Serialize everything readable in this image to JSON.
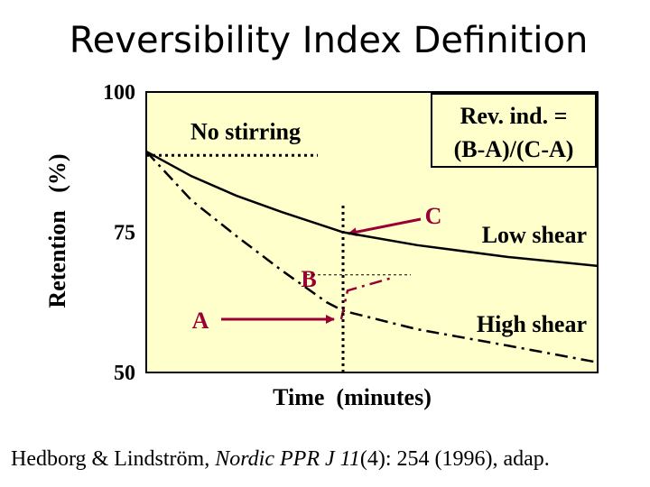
{
  "chart_data": {
    "type": "line",
    "title": "Reversibility Index Definition",
    "ylabel": "Retention   (%)",
    "xlabel": "Time  (minutes)",
    "ylim": [
      50,
      100
    ],
    "yticks": [
      50,
      75,
      100
    ],
    "xlim": [
      0,
      100
    ],
    "series": [
      {
        "name": "Low shear",
        "color": "#000000",
        "style": "solid",
        "x": [
          0,
          10,
          20,
          30,
          43.6,
          60,
          80,
          100
        ],
        "values": [
          89.4,
          85,
          81.5,
          78.6,
          75,
          72.7,
          70.6,
          69
        ]
      },
      {
        "name": "High shear",
        "color": "#000000",
        "style": "dashdot",
        "x": [
          0,
          10,
          20,
          30,
          40,
          43.6,
          60,
          80,
          100
        ],
        "values": [
          89.4,
          80.7,
          74.3,
          68.2,
          62.5,
          61,
          57.7,
          54.8,
          51.8
        ]
      },
      {
        "color": "#990033",
        "style": "dashdot",
        "x": [
          43.2,
          44.6,
          55
        ],
        "values": [
          59.5,
          64.6,
          67
        ]
      },
      {
        "name": "No stirring",
        "color": "#000000",
        "style": "dotted",
        "x": [
          0,
          38
        ],
        "values": [
          88.7,
          88.7
        ]
      }
    ],
    "vline_x": 43.6,
    "b_level": 67.4,
    "b_level_x": [
      35.6,
      58.6
    ],
    "annotations": {
      "c": "C",
      "b": "B",
      "a": "A",
      "rev_line1": "Rev. ind. =",
      "rev_line2": "(B-A)/(C-A)"
    },
    "source": [
      "Hedborg & Lindström, ",
      "Nordic PPR J 11",
      "(4): 254 (1996), adap."
    ]
  }
}
